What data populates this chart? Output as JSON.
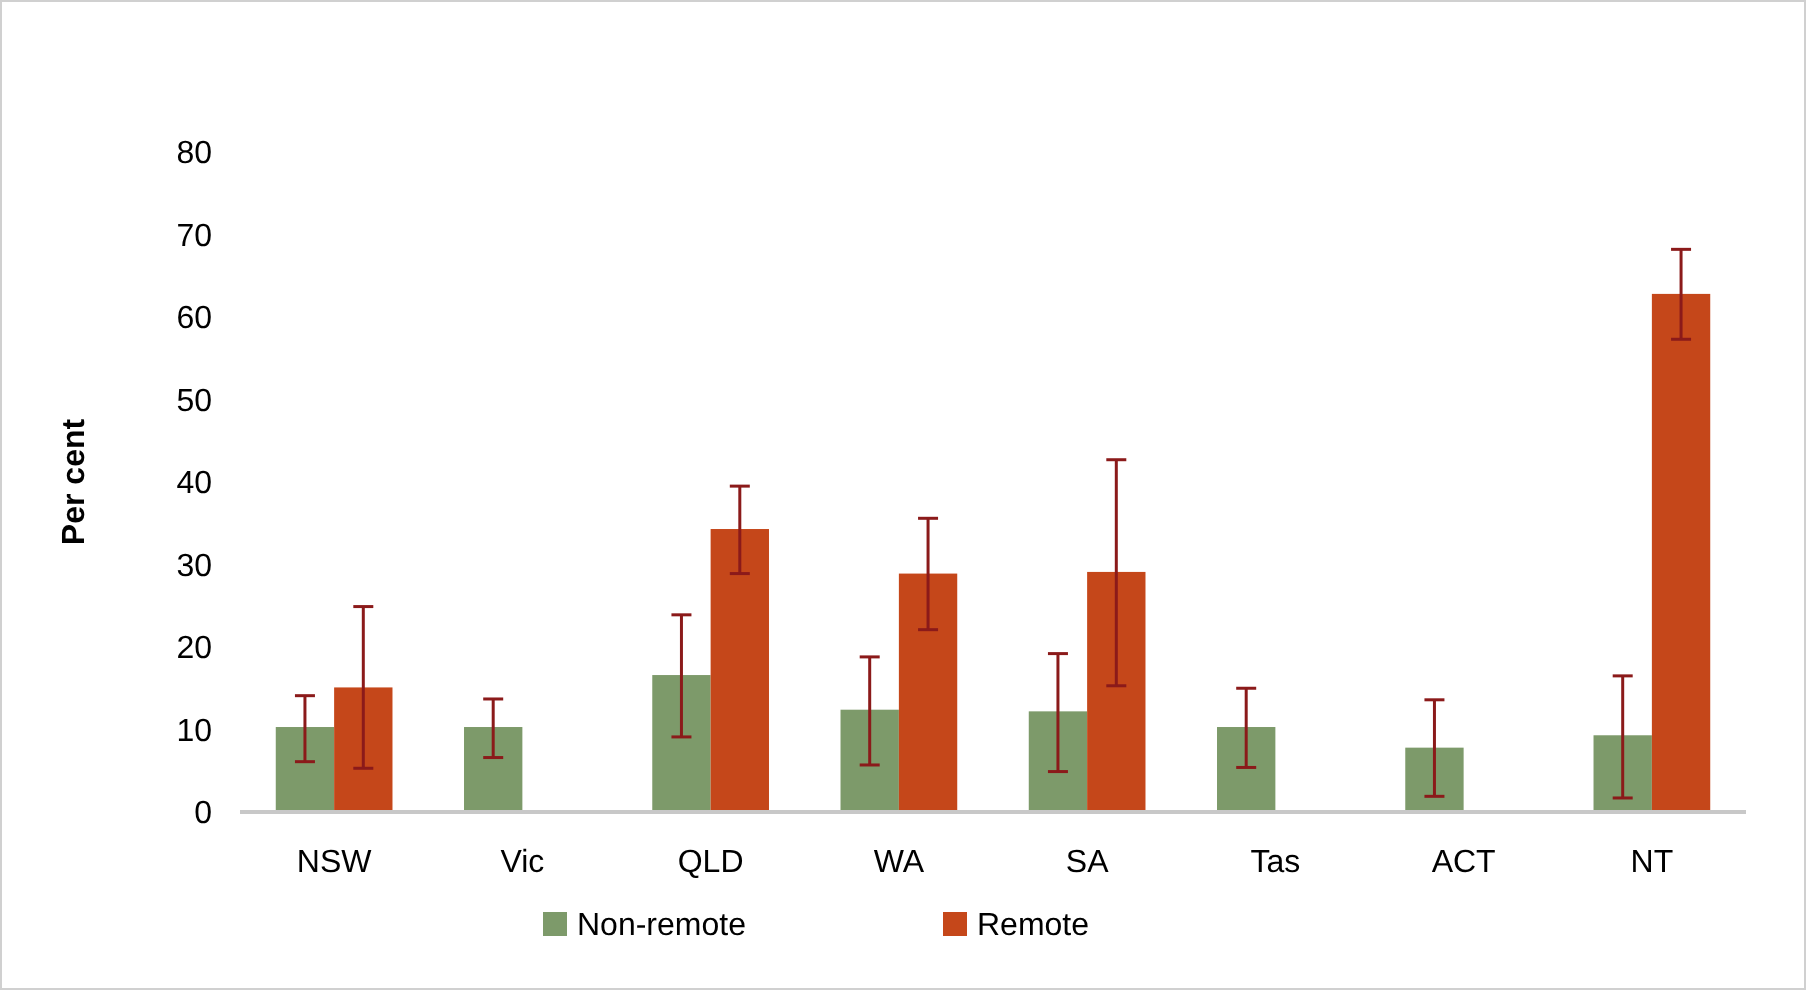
{
  "chart_data": {
    "type": "bar",
    "ylabel": "Per cent",
    "categories": [
      "NSW",
      "Vic",
      "QLD",
      "WA",
      "SA",
      "Tas",
      "ACT",
      "NT"
    ],
    "series": [
      {
        "name": "Non-remote",
        "color": "#7d9a6a",
        "values": [
          10.3,
          10.3,
          16.6,
          12.4,
          12.2,
          10.3,
          7.8,
          9.3
        ],
        "errors": [
          [
            6.1,
            14.1
          ],
          [
            6.6,
            13.7
          ],
          [
            9.1,
            23.9
          ],
          [
            5.7,
            18.8
          ],
          [
            4.9,
            19.2
          ],
          [
            5.4,
            15.0
          ],
          [
            1.9,
            13.6
          ],
          [
            1.7,
            16.5
          ]
        ]
      },
      {
        "name": "Remote",
        "color": "#c5471a",
        "values": [
          15.1,
          null,
          34.3,
          28.9,
          29.1,
          null,
          null,
          62.8
        ],
        "errors": [
          [
            5.3,
            24.9
          ],
          null,
          [
            28.9,
            39.5
          ],
          [
            22.1,
            35.6
          ],
          [
            15.3,
            42.7
          ],
          null,
          null,
          [
            57.3,
            68.2
          ]
        ]
      }
    ],
    "ylim": [
      0,
      80
    ],
    "yticks": [
      0,
      10,
      20,
      30,
      40,
      50,
      60,
      70,
      80
    ],
    "legend": "bottom"
  }
}
